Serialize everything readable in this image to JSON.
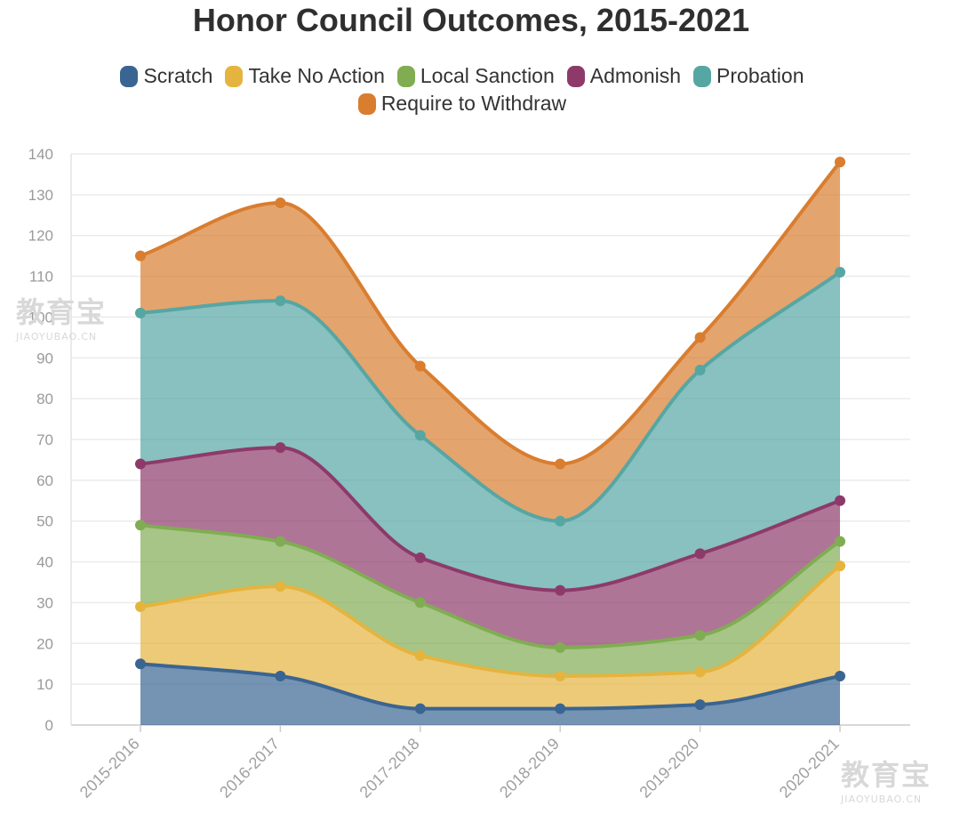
{
  "chart_data": {
    "type": "area",
    "stacked": true,
    "title": "Honor Council Outcomes, 2015-2021",
    "xlabel": "",
    "ylabel": "",
    "ylim": [
      0,
      140
    ],
    "ytick_step": 10,
    "grid": true,
    "legend_position": "top",
    "categories": [
      "2015-2016",
      "2016-2017",
      "2017-2018",
      "2018-2019",
      "2019-2020",
      "2020-2021"
    ],
    "series": [
      {
        "name": "Scratch",
        "color": "#3a6592",
        "values": [
          15,
          12,
          4,
          4,
          5,
          12
        ]
      },
      {
        "name": "Take No Action",
        "color": "#e5b43f",
        "values": [
          14,
          22,
          13,
          8,
          8,
          27
        ]
      },
      {
        "name": "Local Sanction",
        "color": "#80ad52",
        "values": [
          20,
          11,
          13,
          7,
          9,
          6
        ]
      },
      {
        "name": "Admonish",
        "color": "#8d3a6b",
        "values": [
          15,
          23,
          11,
          14,
          20,
          10
        ]
      },
      {
        "name": "Probation",
        "color": "#56a6a4",
        "values": [
          37,
          36,
          30,
          17,
          45,
          56
        ]
      },
      {
        "name": "Require to Withdraw",
        "color": "#d97d2f",
        "values": [
          14,
          24,
          17,
          14,
          8,
          27
        ]
      }
    ]
  },
  "watermarks": [
    {
      "main": "教育宝",
      "sub": "JIAOYUBAO.CN"
    },
    {
      "main": "教育宝",
      "sub": "JIAOYUBAO.CN"
    }
  ]
}
